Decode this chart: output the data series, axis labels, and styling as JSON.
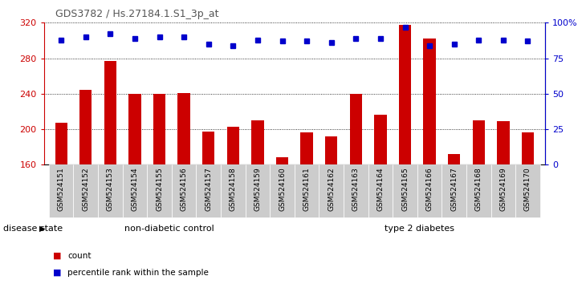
{
  "title": "GDS3782 / Hs.27184.1.S1_3p_at",
  "samples": [
    "GSM524151",
    "GSM524152",
    "GSM524153",
    "GSM524154",
    "GSM524155",
    "GSM524156",
    "GSM524157",
    "GSM524158",
    "GSM524159",
    "GSM524160",
    "GSM524161",
    "GSM524162",
    "GSM524163",
    "GSM524164",
    "GSM524165",
    "GSM524166",
    "GSM524167",
    "GSM524168",
    "GSM524169",
    "GSM524170"
  ],
  "counts": [
    207,
    244,
    277,
    240,
    240,
    241,
    197,
    203,
    210,
    168,
    196,
    192,
    240,
    216,
    318,
    302,
    172,
    210,
    209,
    196
  ],
  "percentiles": [
    88,
    90,
    92,
    89,
    90,
    90,
    85,
    84,
    88,
    87,
    87,
    86,
    89,
    89,
    97,
    84,
    85,
    88,
    88,
    87
  ],
  "group1_label": "non-diabetic control",
  "group2_label": "type 2 diabetes",
  "disease_state_label": "disease state",
  "legend_count_label": "count",
  "legend_pct_label": "percentile rank within the sample",
  "ylim_left": [
    160,
    320
  ],
  "ylim_right": [
    0,
    100
  ],
  "yticks_left": [
    160,
    200,
    240,
    280,
    320
  ],
  "yticks_right": [
    0,
    25,
    50,
    75,
    100
  ],
  "bar_color": "#cc0000",
  "dot_color": "#0000cc",
  "group1_bg": "#ccffcc",
  "group2_bg": "#55cc55",
  "plot_bg": "#ffffff",
  "title_color": "#555555",
  "left_tick_color": "#cc0000",
  "right_tick_color": "#0000cc",
  "grid_color": "#000000",
  "tick_label_bg": "#cccccc"
}
